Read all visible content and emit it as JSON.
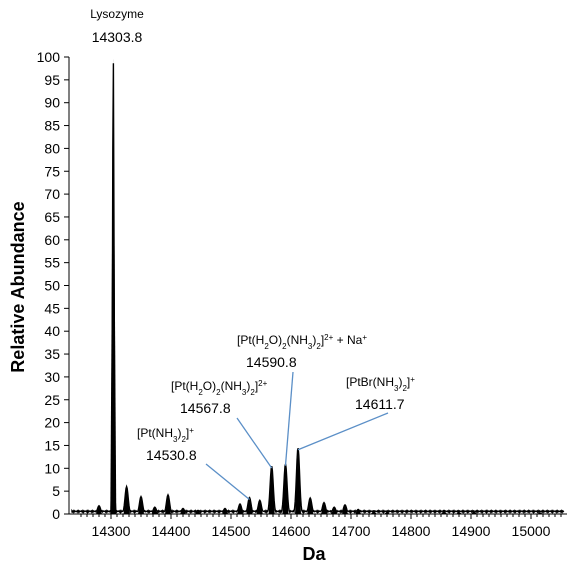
{
  "chart_data": {
    "type": "line",
    "xlabel": "Da",
    "ylabel": "Relative Abundance",
    "xlim": [
      14230,
      15060
    ],
    "ylim": [
      0,
      100
    ],
    "x_ticks": [
      14300,
      14400,
      14500,
      14600,
      14700,
      14800,
      14900,
      15000
    ],
    "y_ticks": [
      0,
      5,
      10,
      15,
      20,
      25,
      30,
      35,
      40,
      45,
      50,
      55,
      60,
      65,
      70,
      75,
      80,
      85,
      90,
      95,
      100
    ],
    "line_color": "#5b8fc7",
    "series": [
      {
        "values": [
          [
            14280,
            1.8
          ],
          [
            14303.8,
            100
          ],
          [
            14326,
            6
          ],
          [
            14350,
            3.8
          ],
          [
            14373,
            1.5
          ],
          [
            14395,
            4.2
          ],
          [
            14420,
            1.2
          ],
          [
            14445,
            0.8
          ],
          [
            14490,
            1.2
          ],
          [
            14515,
            2.2
          ],
          [
            14530.8,
            3.6
          ],
          [
            14548,
            3.0
          ],
          [
            14567.8,
            10.5
          ],
          [
            14590.8,
            11
          ],
          [
            14611.7,
            14.5
          ],
          [
            14632,
            3.5
          ],
          [
            14655,
            2.5
          ],
          [
            14672,
            1.5
          ],
          [
            14690,
            2.0
          ],
          [
            14712,
            1.0
          ],
          [
            14738,
            0.7
          ],
          [
            14760,
            0.5
          ],
          [
            14855,
            0.8
          ],
          [
            14880,
            0.5
          ],
          [
            14905,
            0.6
          ],
          [
            15015,
            0.4
          ]
        ]
      }
    ],
    "annotations": [
      {
        "label_parts": [
          [
            "Lysozyme",
            ""
          ]
        ],
        "mass": "14303.8"
      },
      {
        "label_parts": [
          [
            "[Pt(NH",
            ""
          ],
          [
            "3",
            "sub"
          ],
          [
            ")",
            ""
          ],
          [
            "2",
            "sub"
          ],
          [
            "]",
            ""
          ],
          [
            "+",
            "sup"
          ]
        ],
        "mass": "14530.8"
      },
      {
        "label_parts": [
          [
            "[Pt(H",
            ""
          ],
          [
            "2",
            "sub"
          ],
          [
            "O)",
            ""
          ],
          [
            "2",
            "sub"
          ],
          [
            "(NH",
            ""
          ],
          [
            "3",
            "sub"
          ],
          [
            ")",
            ""
          ],
          [
            "2",
            "sub"
          ],
          [
            "]",
            ""
          ],
          [
            "2+",
            "sup"
          ]
        ],
        "mass": "14567.8"
      },
      {
        "label_parts": [
          [
            "[Pt(H",
            ""
          ],
          [
            "2",
            "sub"
          ],
          [
            "O)",
            ""
          ],
          [
            "2",
            "sub"
          ],
          [
            "(NH",
            ""
          ],
          [
            "3",
            "sub"
          ],
          [
            ")",
            ""
          ],
          [
            "2",
            "sub"
          ],
          [
            "]",
            ""
          ],
          [
            "2+",
            "sup"
          ],
          [
            " + Na",
            ""
          ],
          [
            "+",
            "sup"
          ]
        ],
        "mass": "14590.8"
      },
      {
        "label_parts": [
          [
            "[PtBr(NH",
            ""
          ],
          [
            "3",
            "sub"
          ],
          [
            ")",
            ""
          ],
          [
            "2",
            "sub"
          ],
          [
            "]",
            ""
          ],
          [
            "+",
            "sup"
          ]
        ],
        "mass": "14611.7"
      }
    ]
  }
}
